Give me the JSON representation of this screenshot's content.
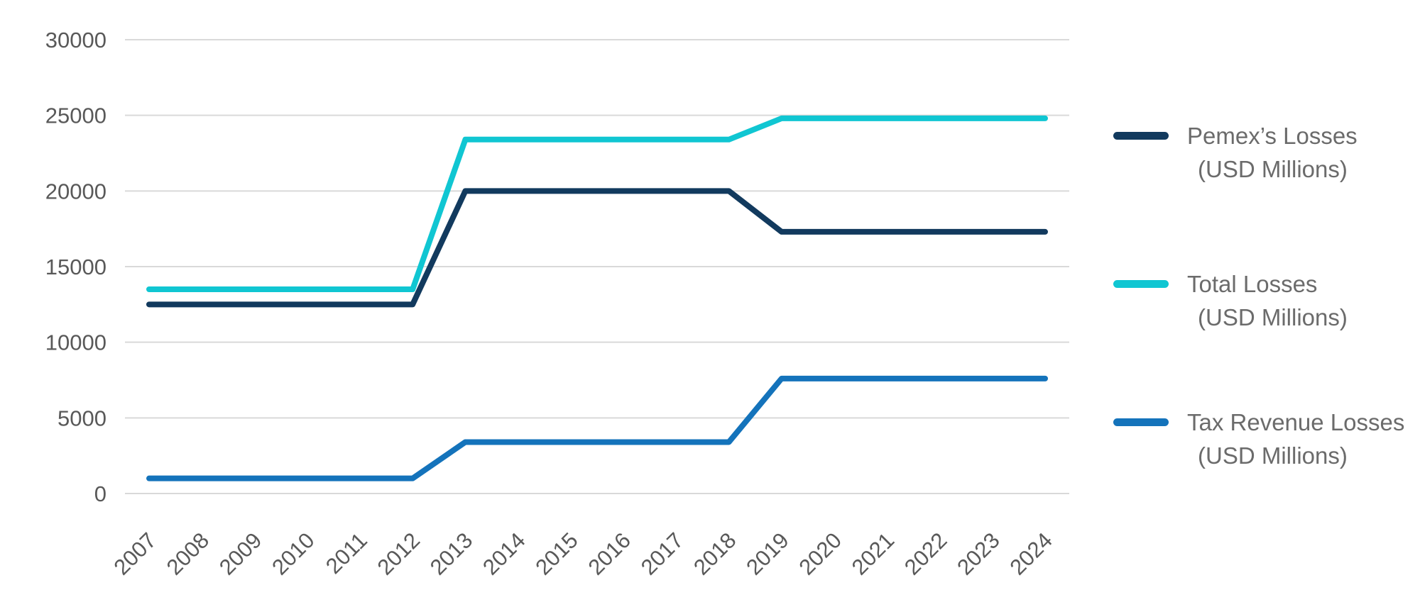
{
  "chart_data": {
    "type": "line",
    "title": "",
    "xlabel": "",
    "ylabel": "",
    "x": [
      "2007",
      "2008",
      "2009",
      "2010",
      "2011",
      "2012",
      "2013",
      "2014",
      "2015",
      "2016",
      "2017",
      "2018",
      "2019",
      "2020",
      "2021",
      "2022",
      "2023",
      "2024"
    ],
    "ylim": [
      0,
      30000
    ],
    "yticks": [
      0,
      5000,
      10000,
      15000,
      20000,
      25000,
      30000
    ],
    "ytick_labels": [
      "0",
      "5000",
      "10000",
      "15000",
      "20000",
      "25000",
      "30000"
    ],
    "grid": true,
    "legend_position": "right",
    "x_tick_labels_rotated_degrees": 45,
    "series": [
      {
        "name": "Pemex’s Losses (USD Millions)",
        "legend_lines": [
          "Pemex’s Losses",
          "(USD Millions)"
        ],
        "color": "#123a5e",
        "values": [
          12500,
          12500,
          12500,
          12500,
          12500,
          12500,
          20000,
          20000,
          20000,
          20000,
          20000,
          20000,
          17300,
          17300,
          17300,
          17300,
          17300,
          17300
        ]
      },
      {
        "name": "Total Losses (USD Millions)",
        "legend_lines": [
          "Total Losses",
          "(USD Millions)"
        ],
        "color": "#10c6d2",
        "values": [
          13500,
          13500,
          13500,
          13500,
          13500,
          13500,
          23400,
          23400,
          23400,
          23400,
          23400,
          23400,
          24800,
          24800,
          24800,
          24800,
          24800,
          24800
        ]
      },
      {
        "name": "Tax Revenue Losses (USD Millions)",
        "legend_lines": [
          "Tax Revenue Losses",
          "(USD Millions)"
        ],
        "color": "#1473bb",
        "values": [
          1000,
          1000,
          1000,
          1000,
          1000,
          1000,
          3400,
          3400,
          3400,
          3400,
          3400,
          3400,
          7600,
          7600,
          7600,
          7600,
          7600,
          7600
        ]
      }
    ]
  },
  "colors": {
    "background": "#ffffff",
    "gridline": "#d9d9d9",
    "axis_text": "#595959",
    "legend_text": "#6b6b6b"
  }
}
